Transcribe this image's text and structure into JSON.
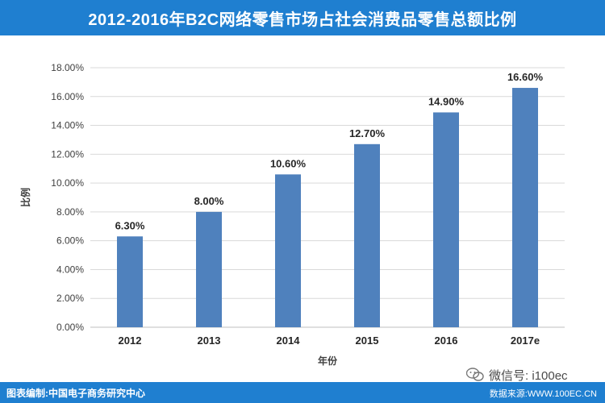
{
  "header": {
    "title": "2012-2016年B2C网络零售市场占社会消费品零售总额比例"
  },
  "footer": {
    "credit": "图表编制:中国电子商务研究中心",
    "source": "数据来源:WWW.100EC.CN",
    "wechat": "微信号: i100ec"
  },
  "colors": {
    "accent": "#1f7fd0",
    "bar": "#4f81bd"
  },
  "chart_data": {
    "type": "bar",
    "title": "2012-2016年B2C网络零售市场占社会消费品零售总额比例",
    "xlabel": "年份",
    "ylabel": "比例",
    "categories": [
      "2012",
      "2013",
      "2014",
      "2015",
      "2016",
      "2017e"
    ],
    "values": [
      6.3,
      8.0,
      10.6,
      12.7,
      14.9,
      16.6
    ],
    "value_labels": [
      "6.30%",
      "8.00%",
      "10.60%",
      "12.70%",
      "14.90%",
      "16.60%"
    ],
    "ylim": [
      0,
      18
    ],
    "yticks": [
      0,
      2,
      4,
      6,
      8,
      10,
      12,
      14,
      16,
      18
    ],
    "ytick_labels": [
      "0.00%",
      "2.00%",
      "4.00%",
      "6.00%",
      "8.00%",
      "10.00%",
      "12.00%",
      "14.00%",
      "16.00%",
      "18.00%"
    ],
    "grid": true,
    "legend": "none"
  }
}
